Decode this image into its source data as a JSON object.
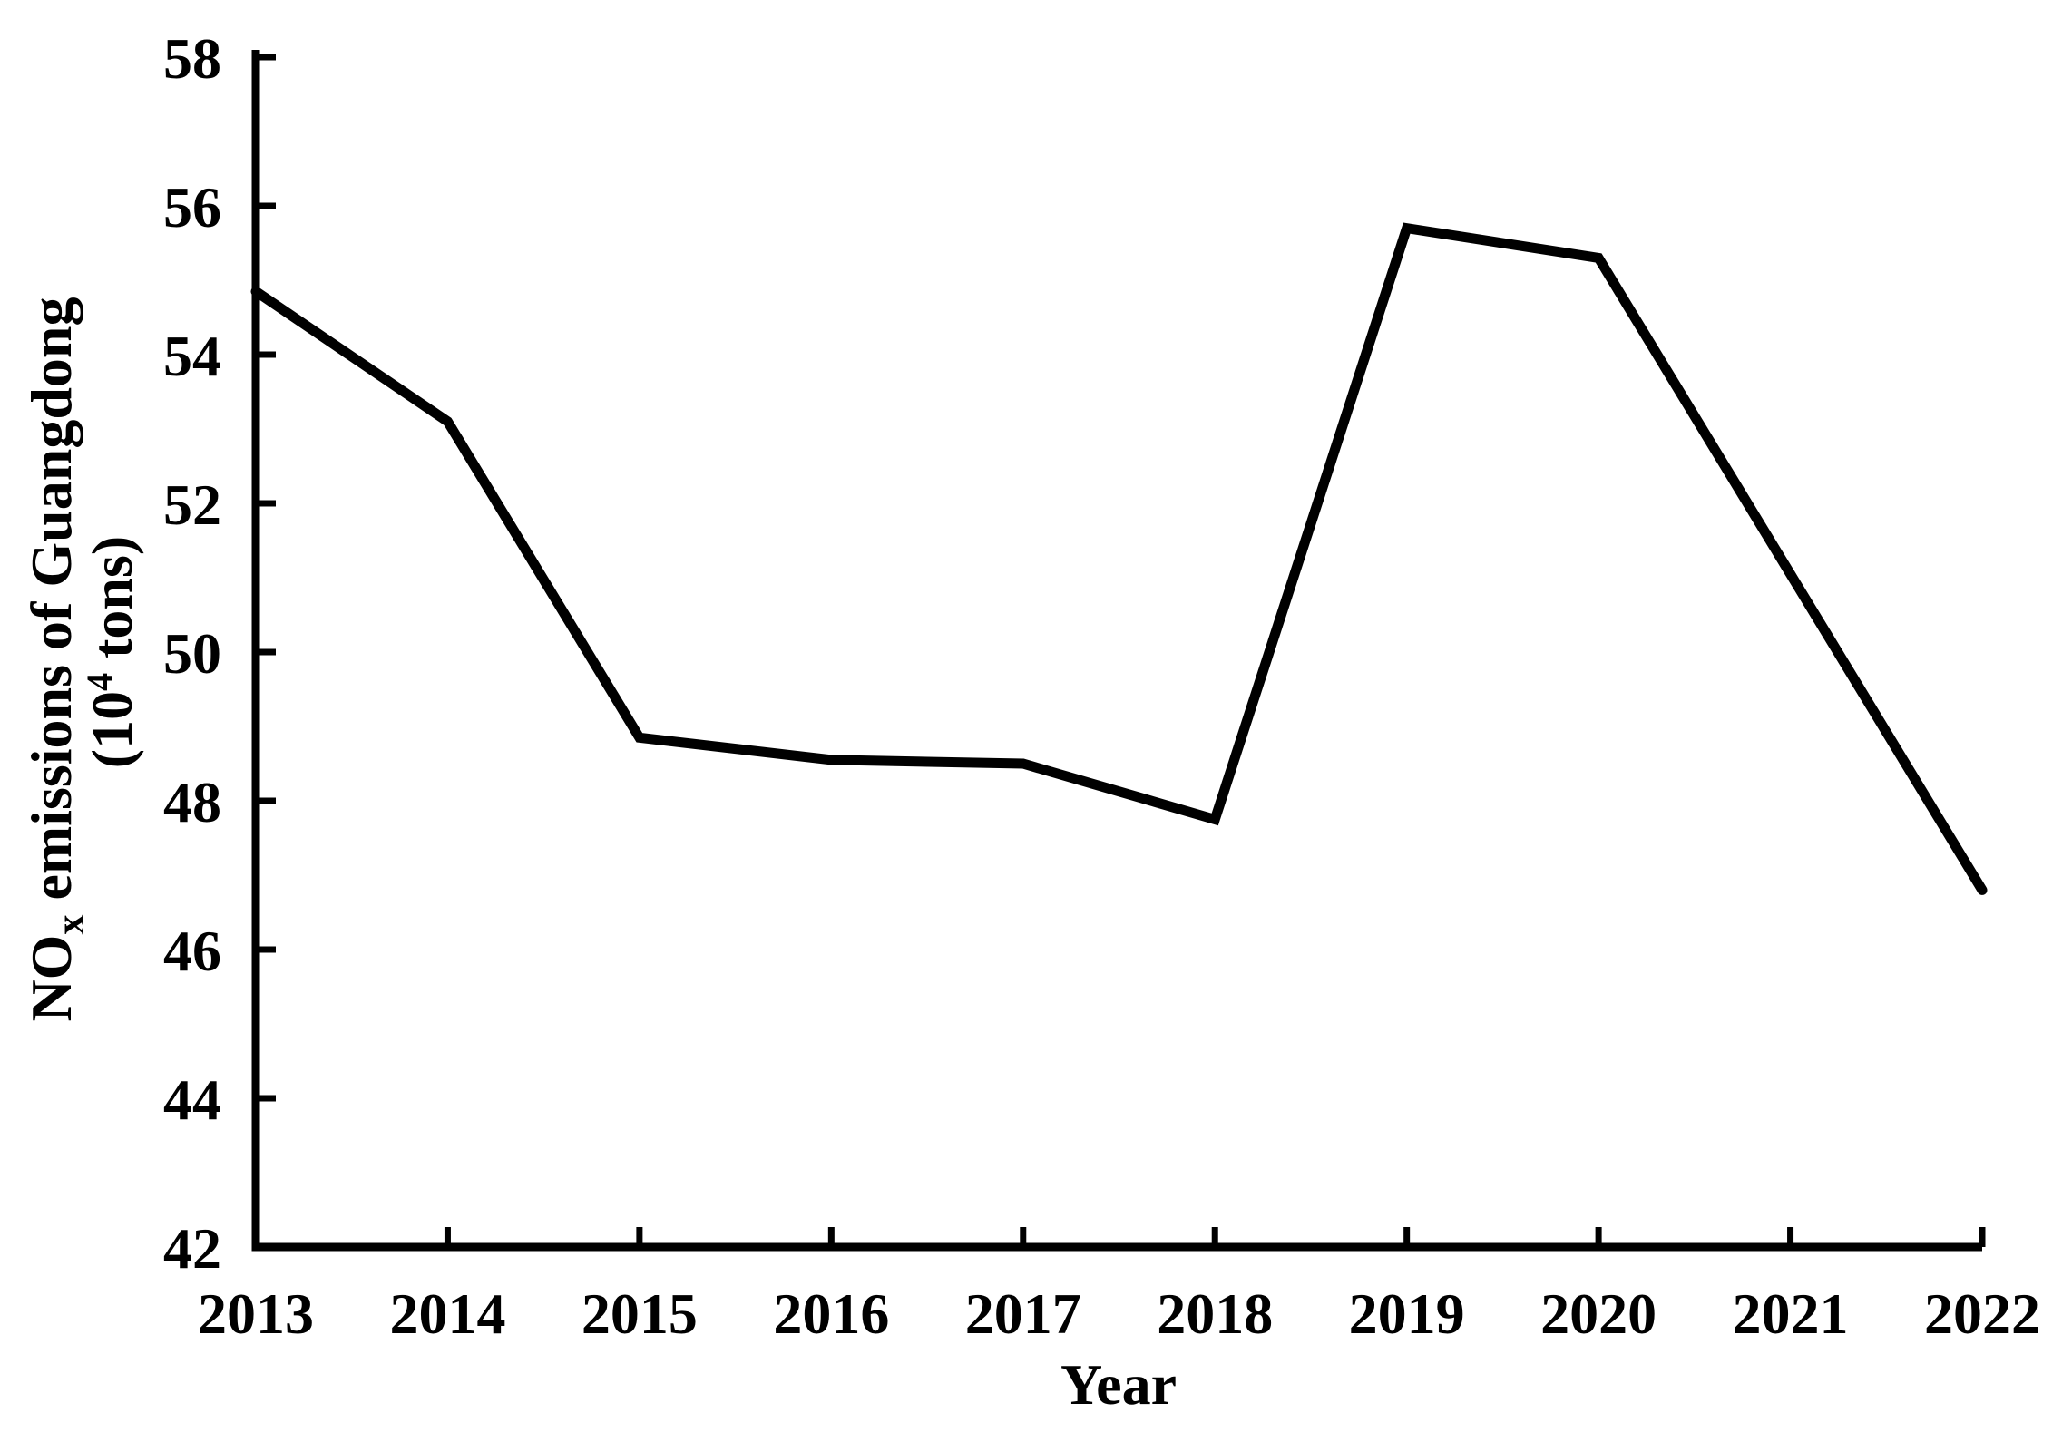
{
  "chart_data": {
    "type": "line",
    "title": "",
    "x": [
      2013,
      2014,
      2015,
      2016,
      2017,
      2018,
      2019,
      2020,
      2021,
      2022
    ],
    "series": [
      {
        "name": "NOx emissions of Guangdong",
        "values": [
          54.85,
          53.1,
          48.85,
          48.55,
          48.5,
          47.75,
          55.7,
          55.3,
          51.05,
          46.8
        ]
      }
    ],
    "xlabel": "Year",
    "ylabel_line1": {
      "pre": "NO",
      "sub": "x",
      "post": " emissions of Guangdong"
    },
    "ylabel_line2": {
      "pre": "(10",
      "sup": "4",
      "post": " tons)"
    },
    "ylim": [
      42,
      58
    ],
    "ytick_step": 2,
    "yticks": [
      42,
      44,
      46,
      48,
      50,
      52,
      54,
      56,
      58
    ],
    "grid": false,
    "legend": "none",
    "line_color": "#000000",
    "background_color": "#ffffff",
    "axis_color": "#000000"
  }
}
